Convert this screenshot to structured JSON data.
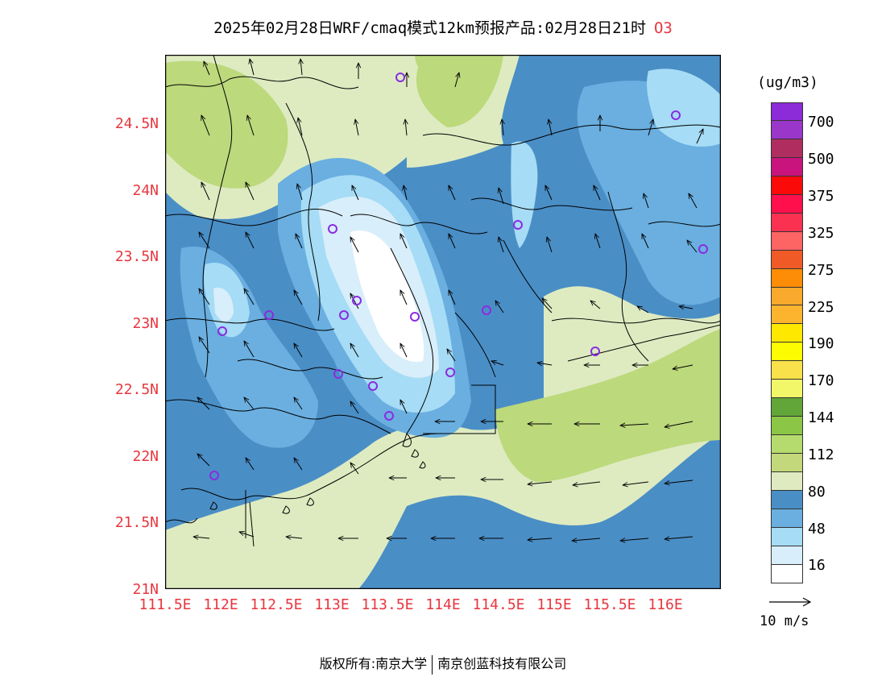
{
  "title": {
    "text": "2025年02月28日WRF/cmaq模式12km预报产品:02月28日21时",
    "species": "O3"
  },
  "map": {
    "lat_labels": [
      "24.5N",
      "24N",
      "23.5N",
      "23N",
      "22.5N",
      "22N",
      "21.5N",
      "21N"
    ],
    "lon_labels": [
      "111.5E",
      "112E",
      "112.5E",
      "113E",
      "113.5E",
      "114E",
      "114.5E",
      "115E",
      "115.5E",
      "116E"
    ],
    "field_colors": {
      "16": "#ffffff",
      "32": "#d8eefa",
      "48": "#a6dcf5",
      "64": "#6aafe0",
      "80": "#4a8ec6",
      "96": "#deebc1",
      "112": "#bcd97c",
      "128": "#a8cf68"
    }
  },
  "legend": {
    "unit": "(ug/m3)",
    "colors": [
      "#8c2bd8",
      "#9a36c9",
      "#b02d5f",
      "#c9147e",
      "#fb0a0a",
      "#ff0f4b",
      "#fb3151",
      "#fd6464",
      "#f05a27",
      "#fd8c06",
      "#f9a92b",
      "#fcb42e",
      "#fee800",
      "#fefc00",
      "#f8e14a",
      "#f2f669",
      "#62a538",
      "#8cc646",
      "#b5db6e",
      "#c3d87a",
      "#dfeac0",
      "#4a8ec6",
      "#6aafe0",
      "#a6dcf5",
      "#d8eefa",
      "#ffffff"
    ],
    "labels": [
      "700",
      "500",
      "375",
      "325",
      "275",
      "225",
      "190",
      "170",
      "144",
      "112",
      "80",
      "48",
      "16"
    ],
    "vector_ref": "10 m/s"
  },
  "footer": {
    "left": "版权所有:南京大学",
    "right": "南京创蓝科技有限公司"
  }
}
